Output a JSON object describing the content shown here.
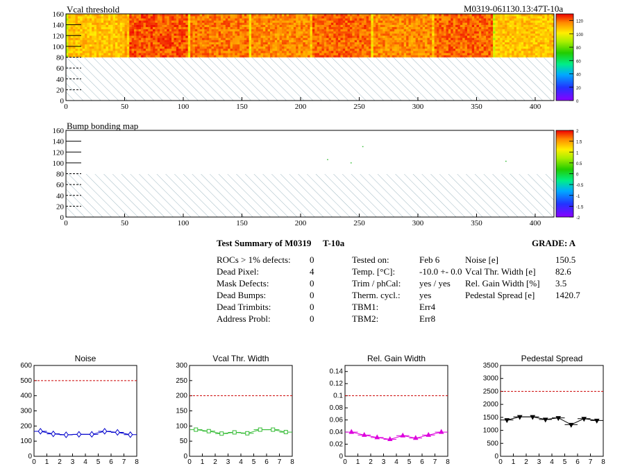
{
  "header": {
    "id_label": "M0319-061130.13:47T-10a"
  },
  "maps": [
    {
      "title": "Vcal threshold",
      "x_ticks": [
        "0",
        "50",
        "100",
        "150",
        "200",
        "250",
        "300",
        "350",
        "400"
      ],
      "y_ticks": [
        "0",
        "20",
        "40",
        "60",
        "80",
        "100",
        "120",
        "140",
        "160"
      ],
      "palette_ticks": [
        "0",
        "20",
        "40",
        "60",
        "80",
        "100",
        "120"
      ],
      "xlim": [
        0,
        416
      ],
      "ylim": [
        0,
        160
      ],
      "zlim": [
        0,
        130
      ],
      "filled_rows": [
        80,
        160
      ],
      "roc_base_values": [
        108,
        122,
        118,
        116,
        120,
        116,
        120,
        108
      ],
      "hatched_rows": [
        0,
        80
      ]
    },
    {
      "title": "Bump bonding map",
      "x_ticks": [
        "0",
        "50",
        "100",
        "150",
        "200",
        "250",
        "300",
        "350",
        "400"
      ],
      "y_ticks": [
        "0",
        "20",
        "40",
        "60",
        "80",
        "100",
        "120",
        "140",
        "160"
      ],
      "palette_ticks": [
        "-2",
        "-1.5",
        "-1",
        "-0.5",
        "0",
        "0.5",
        "1",
        "1.5",
        "2"
      ],
      "xlim": [
        0,
        416
      ],
      "ylim": [
        0,
        160
      ],
      "zlim": [
        -2,
        2
      ],
      "hatched_rows": [
        0,
        80
      ],
      "bad_bumps": [
        [
          253,
          130
        ],
        [
          223,
          106
        ],
        [
          243,
          100
        ],
        [
          375,
          103
        ]
      ]
    }
  ],
  "summary": {
    "title": "Test Summary of M0319",
    "temp_tag": "T-10a",
    "grade": "GRADE:  A",
    "defects": [
      {
        "label": "ROCs > 1% defects:",
        "value": "0"
      },
      {
        "label": "Dead Pixel:",
        "value": "4"
      },
      {
        "label": "Mask Defects:",
        "value": "0"
      },
      {
        "label": "Dead Bumps:",
        "value": "0"
      },
      {
        "label": "Dead Trimbits:",
        "value": "0"
      },
      {
        "label": "Address Probl:",
        "value": "0"
      }
    ],
    "conditions": [
      {
        "label": "Tested on:",
        "value": "Feb 6"
      },
      {
        "label": "Temp. [°C]:",
        "value": "-10.0 +- 0.0"
      },
      {
        "label": "Trim / phCal:",
        "value": "yes / yes"
      },
      {
        "label": "Therm. cycl.:",
        "value": "yes"
      },
      {
        "label": "TBM1:",
        "value": "Err4"
      },
      {
        "label": "TBM2:",
        "value": "Err8"
      }
    ],
    "performance": [
      {
        "label": "Noise [e]",
        "value": "150.5"
      },
      {
        "label": "Vcal Thr. Width [e]",
        "value": "82.6"
      },
      {
        "label": "Rel. Gain Width [%]",
        "value": "3.5"
      },
      {
        "label": "Pedestal Spread [e]",
        "value": "1420.7"
      }
    ]
  },
  "chart_data": [
    {
      "type": "line",
      "title": "Noise",
      "x": [
        0.5,
        1.5,
        2.5,
        3.5,
        4.5,
        5.5,
        6.5,
        7.5
      ],
      "values": [
        165,
        148,
        142,
        145,
        145,
        165,
        158,
        143
      ],
      "xlim": [
        0,
        8
      ],
      "ylim": [
        0,
        600
      ],
      "threshold": 500,
      "x_ticks": [
        "0",
        "1",
        "2",
        "3",
        "4",
        "5",
        "6",
        "7",
        "8"
      ],
      "y_ticks": [
        "0",
        "100",
        "200",
        "300",
        "400",
        "500",
        "600"
      ],
      "color": "#0000cc",
      "marker": "diamond"
    },
    {
      "type": "line",
      "title": "Vcal Thr. Width",
      "x": [
        0.5,
        1.5,
        2.5,
        3.5,
        4.5,
        5.5,
        6.5,
        7.5
      ],
      "values": [
        88,
        83,
        75,
        79,
        76,
        88,
        88,
        80
      ],
      "xlim": [
        0,
        8
      ],
      "ylim": [
        0,
        300
      ],
      "threshold": 200,
      "x_ticks": [
        "0",
        "1",
        "2",
        "3",
        "4",
        "5",
        "6",
        "7",
        "8"
      ],
      "y_ticks": [
        "0",
        "50",
        "100",
        "150",
        "200",
        "250",
        "300"
      ],
      "color": "#33bb33",
      "marker": "square"
    },
    {
      "type": "line",
      "title": "Rel. Gain Width",
      "x": [
        0.5,
        1.5,
        2.5,
        3.5,
        4.5,
        5.5,
        6.5,
        7.5
      ],
      "values": [
        0.04,
        0.035,
        0.031,
        0.028,
        0.034,
        0.03,
        0.035,
        0.04
      ],
      "xlim": [
        0,
        8
      ],
      "ylim": [
        0,
        0.15
      ],
      "threshold": 0.1,
      "x_ticks": [
        "0",
        "1",
        "2",
        "3",
        "4",
        "5",
        "6",
        "7",
        "8"
      ],
      "y_ticks": [
        "0",
        "0.02",
        "0.04",
        "0.06",
        "0.08",
        "0.1",
        "0.12",
        "0.14"
      ],
      "color": "#dd00dd",
      "marker": "triangle"
    },
    {
      "type": "line",
      "title": "Pedestal Spread",
      "x": [
        0.5,
        1.5,
        2.5,
        3.5,
        4.5,
        5.5,
        6.5,
        7.5
      ],
      "values": [
        1400,
        1520,
        1520,
        1420,
        1480,
        1220,
        1450,
        1380
      ],
      "xlim": [
        0,
        8
      ],
      "ylim": [
        0,
        3500
      ],
      "threshold": 2500,
      "x_ticks": [
        "0",
        "1",
        "2",
        "3",
        "4",
        "5",
        "6",
        "7",
        "8"
      ],
      "y_ticks": [
        "0",
        "500",
        "1000",
        "1500",
        "2000",
        "2500",
        "3000",
        "3500"
      ],
      "color": "#000000",
      "marker": "triangle-down"
    }
  ]
}
